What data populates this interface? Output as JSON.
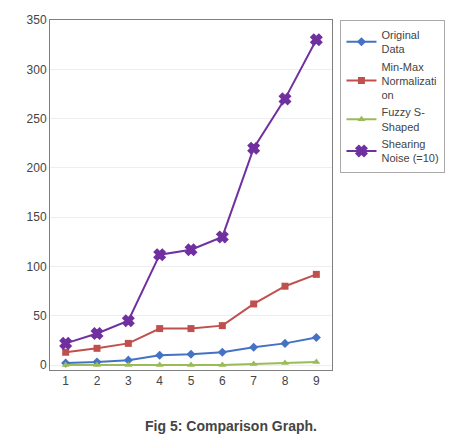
{
  "chart_data": {
    "type": "line",
    "title": "Fig 5: Comparison Graph.",
    "x": [
      1,
      2,
      3,
      4,
      5,
      6,
      7,
      8,
      9
    ],
    "series": [
      {
        "name": "Original\nData",
        "color": "#4472C4",
        "marker": "diamond",
        "values": [
          2,
          3,
          5,
          10,
          11,
          13,
          18,
          22,
          28
        ]
      },
      {
        "name": "Min-Max\nNormalizati\non",
        "color": "#C0504D",
        "marker": "square",
        "values": [
          13,
          17,
          22,
          37,
          37,
          40,
          62,
          80,
          92
        ]
      },
      {
        "name": "Fuzzy S-\nShaped",
        "color": "#9BBB59",
        "marker": "triangle-up",
        "values": [
          0,
          0,
          0,
          0,
          0,
          0,
          1,
          2,
          3
        ]
      },
      {
        "name": "Shearing\nNoise (=10)",
        "color": "#7030A0",
        "marker": "x",
        "values": [
          22,
          32,
          45,
          112,
          117,
          130,
          220,
          270,
          330
        ]
      }
    ],
    "xlim": [
      0.5,
      9.5
    ],
    "xticks": [
      1,
      2,
      3,
      4,
      5,
      6,
      7,
      8,
      9
    ],
    "ylim": [
      -5,
      350
    ],
    "yticks": [
      0,
      50,
      100,
      150,
      200,
      250,
      300,
      350
    ],
    "grid": "y",
    "legend": "right"
  }
}
